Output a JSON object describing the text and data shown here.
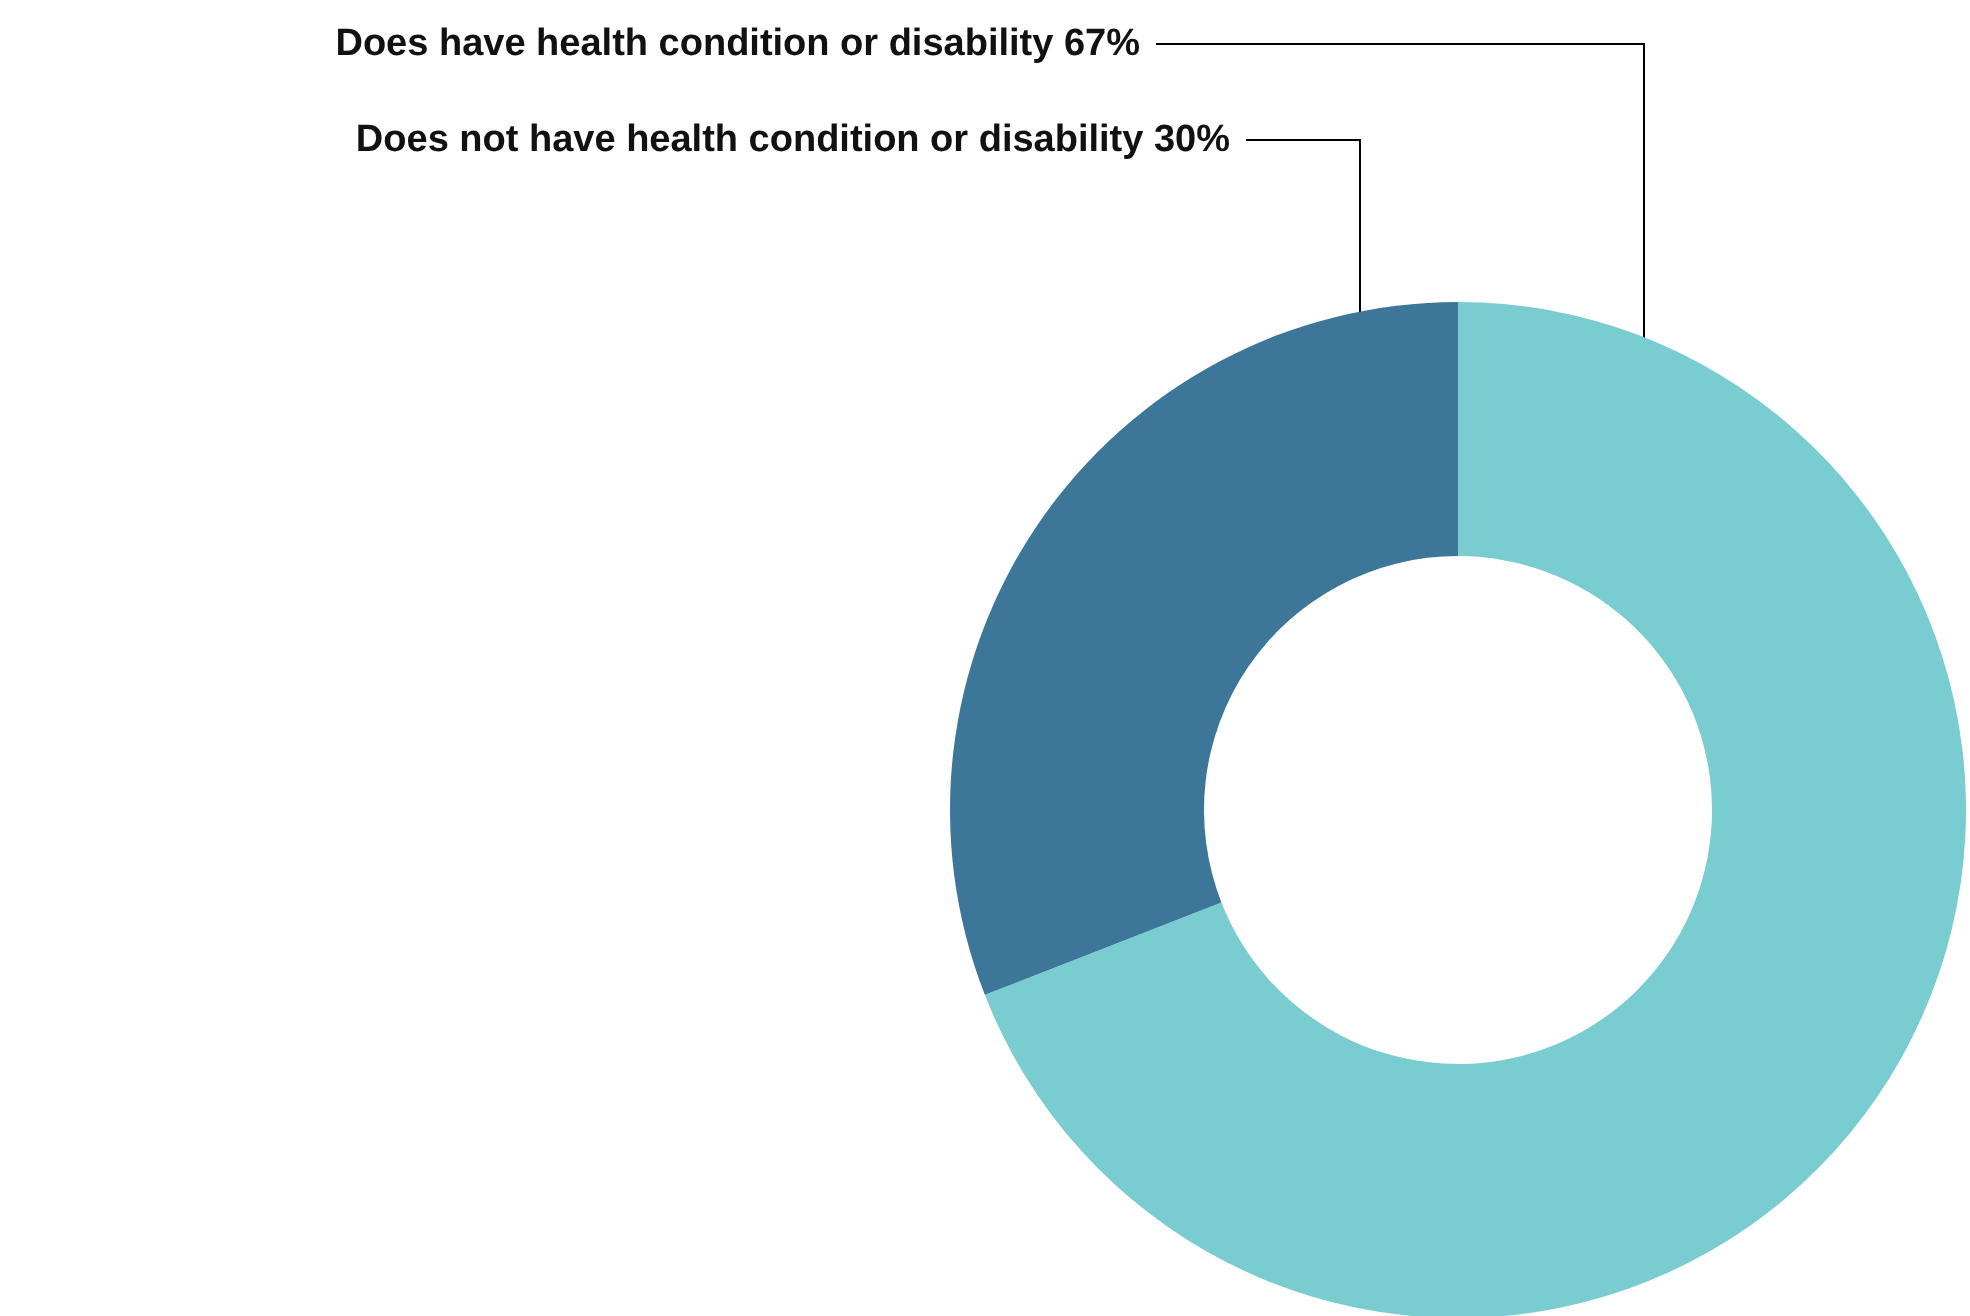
{
  "chart_data": {
    "type": "donut",
    "categories": [
      "Does have health condition or disability",
      "Does not have health condition or disability"
    ],
    "values": [
      67,
      30
    ],
    "value_labels": [
      "67%",
      "30%"
    ],
    "colors": [
      "#79cdd0",
      "#3c7799"
    ],
    "legend": false
  }
}
